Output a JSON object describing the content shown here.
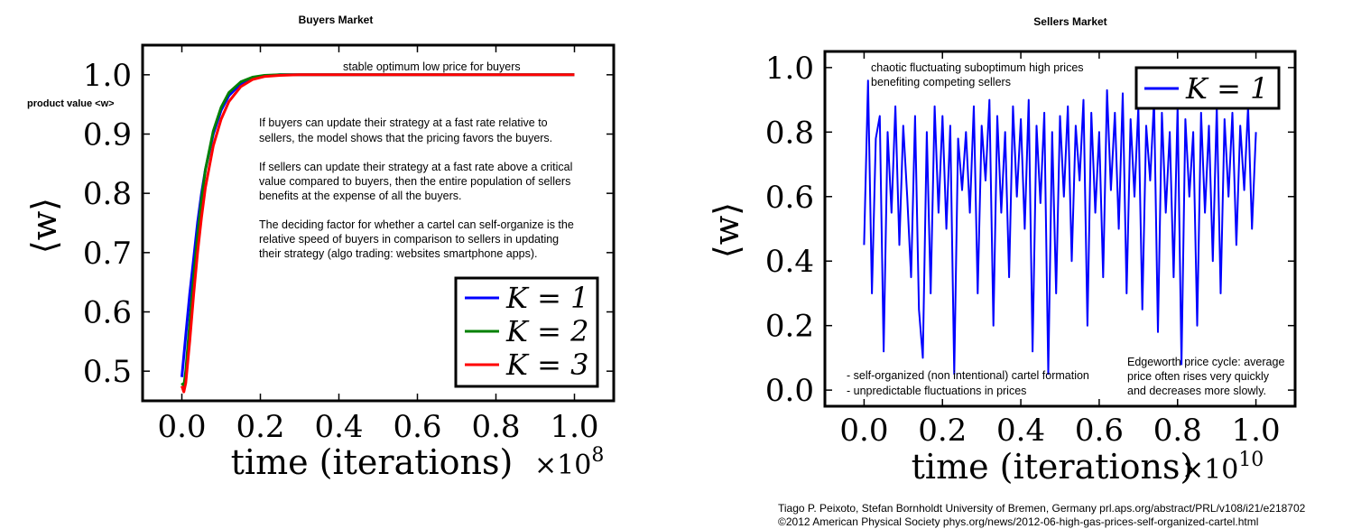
{
  "chart_data": [
    {
      "type": "line",
      "title": "Buyers Market",
      "xlabel": "time (iterations)",
      "x_multiplier": "×10",
      "x_multiplier_exp": "8",
      "ylabel": "⟨w⟩",
      "ylabel_side_note": "product value <w>",
      "xlim": [
        -0.1,
        1.1
      ],
      "ylim": [
        0.45,
        1.05
      ],
      "x_ticks": [
        0.0,
        0.2,
        0.4,
        0.6,
        0.8,
        1.0
      ],
      "x_tick_labels": [
        "0.0",
        "0.2",
        "0.4",
        "0.6",
        "0.8",
        "1.0"
      ],
      "y_ticks": [
        0.5,
        0.6,
        0.7,
        0.8,
        0.9,
        1.0
      ],
      "y_tick_labels": [
        "0.5",
        "0.6",
        "0.7",
        "0.8",
        "0.9",
        "1.0"
      ],
      "legend_position": "lower-right",
      "series": [
        {
          "name": "K = 1",
          "color": "#0000ff",
          "x": [
            0.0,
            0.01,
            0.02,
            0.03,
            0.04,
            0.05,
            0.06,
            0.08,
            0.1,
            0.12,
            0.15,
            0.18,
            0.21,
            0.25,
            0.3,
            0.4,
            0.6,
            1.0
          ],
          "y": [
            0.49,
            0.56,
            0.63,
            0.69,
            0.75,
            0.8,
            0.84,
            0.9,
            0.94,
            0.965,
            0.985,
            0.994,
            0.998,
            1.0,
            1.0,
            1.0,
            1.0,
            1.0
          ]
        },
        {
          "name": "K = 2",
          "color": "#008000",
          "x": [
            0.0,
            0.005,
            0.01,
            0.02,
            0.03,
            0.04,
            0.05,
            0.06,
            0.08,
            0.1,
            0.12,
            0.15,
            0.18,
            0.21,
            0.25,
            0.3,
            0.4,
            0.6,
            1.0
          ],
          "y": [
            0.48,
            0.475,
            0.5,
            0.58,
            0.66,
            0.73,
            0.79,
            0.84,
            0.905,
            0.945,
            0.97,
            0.988,
            0.996,
            0.999,
            1.0,
            1.0,
            1.0,
            1.0,
            1.0
          ]
        },
        {
          "name": "K = 3",
          "color": "#ff0000",
          "x": [
            0.0,
            0.005,
            0.01,
            0.02,
            0.03,
            0.04,
            0.05,
            0.06,
            0.08,
            0.1,
            0.12,
            0.15,
            0.18,
            0.21,
            0.25,
            0.3,
            0.4,
            0.6,
            1.0
          ],
          "y": [
            0.475,
            0.465,
            0.48,
            0.55,
            0.63,
            0.7,
            0.76,
            0.81,
            0.88,
            0.925,
            0.955,
            0.98,
            0.992,
            0.997,
            0.999,
            1.0,
            1.0,
            1.0,
            1.0
          ]
        }
      ],
      "annotations": [
        "stable optimum low price for buyers",
        "If buyers can update their strategy at a fast rate relative to",
        "sellers, the model shows that the pricing favors the buyers.",
        "If sellers can update their strategy at a fast rate above a critical",
        "value compared to buyers, then the entire population of sellers",
        "benefits at the expense of all the buyers.",
        "The deciding factor for whether a cartel can self-organize is the",
        "relative speed of buyers in comparison to sellers in updating",
        "their strategy (algo trading: websites smartphone apps)."
      ]
    },
    {
      "type": "line",
      "title": "Sellers Market",
      "xlabel": "time (iterations)",
      "x_multiplier": "×10",
      "x_multiplier_exp": "10",
      "ylabel": "⟨w⟩",
      "xlim": [
        -0.1,
        1.1
      ],
      "ylim": [
        -0.05,
        1.05
      ],
      "x_ticks": [
        0.0,
        0.2,
        0.4,
        0.6,
        0.8,
        1.0
      ],
      "x_tick_labels": [
        "0.0",
        "0.2",
        "0.4",
        "0.6",
        "0.8",
        "1.0"
      ],
      "y_ticks": [
        0.0,
        0.2,
        0.4,
        0.6,
        0.8,
        1.0
      ],
      "y_tick_labels": [
        "0.0",
        "0.2",
        "0.4",
        "0.6",
        "0.8",
        "1.0"
      ],
      "legend_position": "top-right",
      "series": [
        {
          "name": "K = 1",
          "color": "#0000ff",
          "x": [
            0.0,
            0.01,
            0.02,
            0.03,
            0.04,
            0.05,
            0.06,
            0.07,
            0.08,
            0.09,
            0.1,
            0.11,
            0.12,
            0.13,
            0.14,
            0.15,
            0.16,
            0.17,
            0.18,
            0.19,
            0.2,
            0.21,
            0.22,
            0.23,
            0.24,
            0.25,
            0.26,
            0.27,
            0.28,
            0.29,
            0.3,
            0.31,
            0.32,
            0.33,
            0.34,
            0.35,
            0.36,
            0.37,
            0.38,
            0.39,
            0.4,
            0.41,
            0.42,
            0.43,
            0.44,
            0.45,
            0.46,
            0.47,
            0.48,
            0.49,
            0.5,
            0.51,
            0.52,
            0.53,
            0.54,
            0.55,
            0.56,
            0.57,
            0.58,
            0.59,
            0.6,
            0.61,
            0.62,
            0.63,
            0.64,
            0.65,
            0.66,
            0.67,
            0.68,
            0.69,
            0.7,
            0.71,
            0.72,
            0.73,
            0.74,
            0.75,
            0.76,
            0.77,
            0.78,
            0.79,
            0.8,
            0.81,
            0.82,
            0.83,
            0.84,
            0.85,
            0.86,
            0.87,
            0.88,
            0.89,
            0.9,
            0.91,
            0.92,
            0.93,
            0.94,
            0.95,
            0.96,
            0.97,
            0.98,
            0.99,
            1.0
          ],
          "y": [
            0.45,
            0.96,
            0.3,
            0.78,
            0.85,
            0.12,
            0.8,
            0.55,
            0.88,
            0.45,
            0.82,
            0.6,
            0.35,
            0.85,
            0.25,
            0.1,
            0.8,
            0.3,
            0.88,
            0.55,
            0.85,
            0.5,
            0.82,
            0.05,
            0.78,
            0.62,
            0.8,
            0.55,
            0.88,
            0.3,
            0.82,
            0.65,
            0.9,
            0.2,
            0.85,
            0.55,
            0.8,
            0.35,
            0.88,
            0.6,
            0.84,
            0.5,
            0.9,
            0.12,
            0.82,
            0.58,
            0.86,
            0.05,
            0.8,
            0.3,
            0.85,
            0.6,
            0.88,
            0.4,
            0.82,
            0.65,
            0.9,
            0.2,
            0.86,
            0.55,
            0.8,
            0.35,
            0.93,
            0.62,
            0.86,
            0.5,
            0.92,
            0.3,
            0.84,
            0.6,
            0.88,
            0.25,
            0.82,
            0.65,
            0.9,
            0.18,
            0.86,
            0.55,
            0.8,
            0.35,
            0.88,
            0.08,
            0.84,
            0.6,
            0.8,
            0.2,
            0.86,
            0.55,
            0.82,
            0.4,
            0.88,
            0.3,
            0.84,
            0.6,
            0.86,
            0.45,
            0.82,
            0.62,
            0.88,
            0.5,
            0.8
          ]
        }
      ],
      "annotations": [
        "chaotic fluctuating suboptimum high prices",
        "benefiting competing sellers",
        "- self-organized (non intentional) cartel formation",
        "- unpredictable fluctuations in prices",
        "Edgeworth price cycle: average",
        "price often rises very quickly",
        "and decreases more slowly."
      ]
    }
  ],
  "credits": {
    "line1": "Tiago P. Peixoto, Stefan Bornholdt  University of Bremen, Germany   prl.aps.org/abstract/PRL/v108/i21/e218702",
    "line2": "©2012 American Physical Society phys.org/news/2012-06-high-gas-prices-self-organized-cartel.html"
  }
}
